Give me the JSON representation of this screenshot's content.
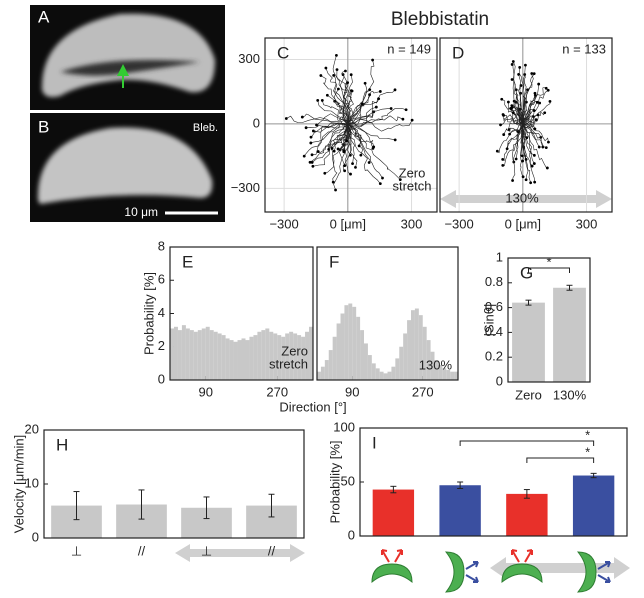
{
  "title": "Blebbistatin",
  "images": [
    {
      "label": "A"
    },
    {
      "label": "B",
      "caption": "Bleb.",
      "scale_bar": "10 μm"
    }
  ],
  "chart_data": [
    {
      "type": "tracks",
      "label": "C",
      "note": "n = 149",
      "annotation": [
        "Zero",
        "stretch"
      ],
      "xlim": [
        -390,
        420
      ],
      "ylim": [
        -410,
        400
      ],
      "xticks": [
        {
          "value": -300,
          "label": "−300"
        },
        {
          "value": 0,
          "label": "0 [μm]"
        },
        300
      ],
      "yticks": [
        300,
        0,
        {
          "value": -300,
          "label": "−300"
        }
      ],
      "grid": true
    },
    {
      "type": "tracks",
      "label": "D",
      "note": "n = 133",
      "annotation": [
        "130%"
      ],
      "xlim": [
        -390,
        420
      ],
      "ylim": [
        -410,
        400
      ],
      "xticks": [
        {
          "value": -300,
          "label": "−300"
        },
        {
          "value": 0,
          "label": "0 [μm]"
        },
        300
      ],
      "grid": true
    },
    {
      "type": "histogram",
      "label": "E",
      "y_label": "Probability [%]",
      "x_label": "Direction [°]",
      "annotation": [
        "Zero",
        "stretch"
      ],
      "bins": [
        0,
        10,
        20,
        30,
        40,
        50,
        60,
        70,
        80,
        90,
        100,
        110,
        120,
        130,
        140,
        150,
        160,
        170,
        180,
        190,
        200,
        210,
        220,
        230,
        240,
        250,
        260,
        270,
        280,
        290,
        300,
        310,
        320,
        330,
        340,
        350,
        360
      ],
      "values": [
        3.1,
        3.2,
        3.0,
        3.3,
        3.1,
        3.0,
        2.9,
        3.0,
        3.1,
        3.2,
        3.0,
        2.9,
        2.8,
        2.7,
        2.5,
        2.4,
        2.3,
        2.4,
        2.5,
        2.4,
        2.6,
        2.7,
        2.9,
        3.0,
        3.1,
        2.9,
        2.8,
        2.7,
        2.6,
        2.8,
        2.9,
        2.8,
        2.7,
        2.6,
        2.9,
        3.2
      ],
      "color": "#c8c8c8",
      "xlim": [
        0,
        360
      ],
      "xticks": [
        90,
        270
      ],
      "ylim": [
        0,
        8
      ],
      "yticks": [
        0,
        2,
        4,
        6,
        8
      ]
    },
    {
      "type": "histogram",
      "label": "F",
      "annotation": [
        "130%"
      ],
      "bins": [
        0,
        10,
        20,
        30,
        40,
        50,
        60,
        70,
        80,
        90,
        100,
        110,
        120,
        130,
        140,
        150,
        160,
        170,
        180,
        190,
        200,
        210,
        220,
        230,
        240,
        250,
        260,
        270,
        280,
        290,
        300,
        310,
        320,
        330,
        340,
        350,
        360
      ],
      "values": [
        0.5,
        0.8,
        1.2,
        1.8,
        2.6,
        3.4,
        4.0,
        4.5,
        4.6,
        4.4,
        3.8,
        3.0,
        2.2,
        1.5,
        1.0,
        0.7,
        0.5,
        0.4,
        0.5,
        0.8,
        1.3,
        2.0,
        2.8,
        3.6,
        4.2,
        4.3,
        3.9,
        3.2,
        2.4,
        1.7,
        1.2,
        0.9,
        0.7,
        0.6,
        0.5,
        0.5
      ],
      "color": "#c8c8c8",
      "xlim": [
        0,
        360
      ],
      "xticks": [
        90,
        270
      ],
      "ylim": [
        0,
        8
      ]
    },
    {
      "type": "bar",
      "label": "G",
      "y_label": "|Sinθ|",
      "categories": [
        "Zero",
        "130%"
      ],
      "values": [
        0.64,
        0.76
      ],
      "errors": [
        0.02,
        0.02
      ],
      "color": "#c8c8c8",
      "ylim": [
        0,
        1
      ],
      "yticks": [
        0,
        0.2,
        0.4,
        0.6,
        0.8,
        1
      ],
      "annotations": [
        "*"
      ]
    },
    {
      "type": "bar",
      "label": "H",
      "y_label": "Velocity [μm/min]",
      "categories": [
        "⊥",
        "//",
        "⊥",
        "//"
      ],
      "values": [
        6,
        6.2,
        5.6,
        6
      ],
      "errors": [
        2.6,
        2.7,
        2,
        2.1
      ],
      "color": "#c8c8c8",
      "ylim": [
        0,
        20
      ],
      "yticks": [
        0,
        10,
        20
      ]
    },
    {
      "type": "bar",
      "label": "I",
      "y_label": "Probability [%]",
      "categories": [
        null,
        null,
        null,
        null
      ],
      "values": [
        43,
        47,
        39,
        56
      ],
      "errors": [
        3,
        3,
        4,
        2
      ],
      "colors": [
        "#e8302a",
        "#3a4fa0",
        "#e8302a",
        "#3a4fa0"
      ],
      "ylim": [
        0,
        100
      ],
      "yticks": [
        0,
        50,
        100
      ],
      "annotations": [
        "*",
        "*"
      ]
    }
  ]
}
